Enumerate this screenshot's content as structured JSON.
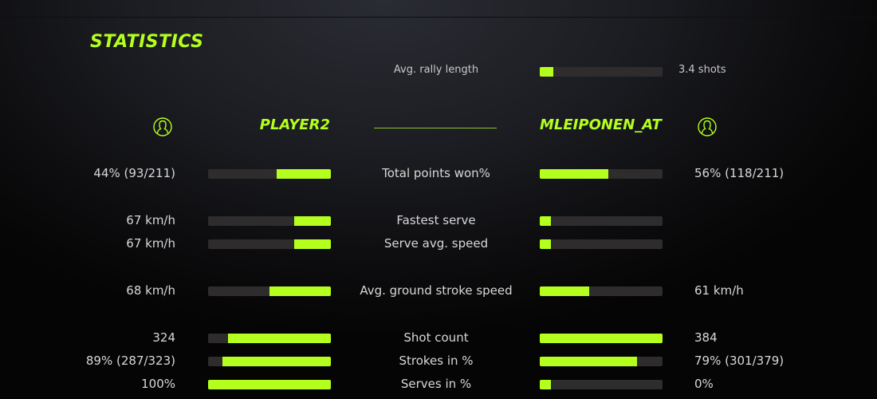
{
  "title": "STATISTICS",
  "accent": "#b4ff1e",
  "rally": {
    "label": "Avg. rally length",
    "value": "3.4 shots",
    "fill": 0.11
  },
  "players": {
    "left": {
      "name": "PLAYER2",
      "icon": "user-circle-icon"
    },
    "right": {
      "name": "MLEIPONEN_AT",
      "icon": "user-circle-icon"
    }
  },
  "rows": [
    {
      "label": "Total points won%",
      "left": "44% (93/211)",
      "right": "56% (118/211)",
      "left_fill": 0.44,
      "right_fill": 0.56
    },
    {
      "label": "Fastest serve",
      "left": "67 km/h",
      "right": "",
      "left_fill": 0.3,
      "right_fill": 0.09
    },
    {
      "label": "Serve avg. speed",
      "left": "67 km/h",
      "right": "",
      "left_fill": 0.3,
      "right_fill": 0.09
    },
    {
      "label": "Avg. ground stroke speed",
      "left": "68 km/h",
      "right": "61 km/h",
      "left_fill": 0.5,
      "right_fill": 0.4
    },
    {
      "label": "Shot count",
      "left": "324",
      "right": "384",
      "left_fill": 0.84,
      "right_fill": 1.0
    },
    {
      "label": "Strokes in %",
      "left": "89% (287/323)",
      "right": "79% (301/379)",
      "left_fill": 0.88,
      "right_fill": 0.79
    },
    {
      "label": "Serves in %",
      "left": "100%",
      "right": "0%",
      "left_fill": 1.0,
      "right_fill": 0.09
    }
  ]
}
